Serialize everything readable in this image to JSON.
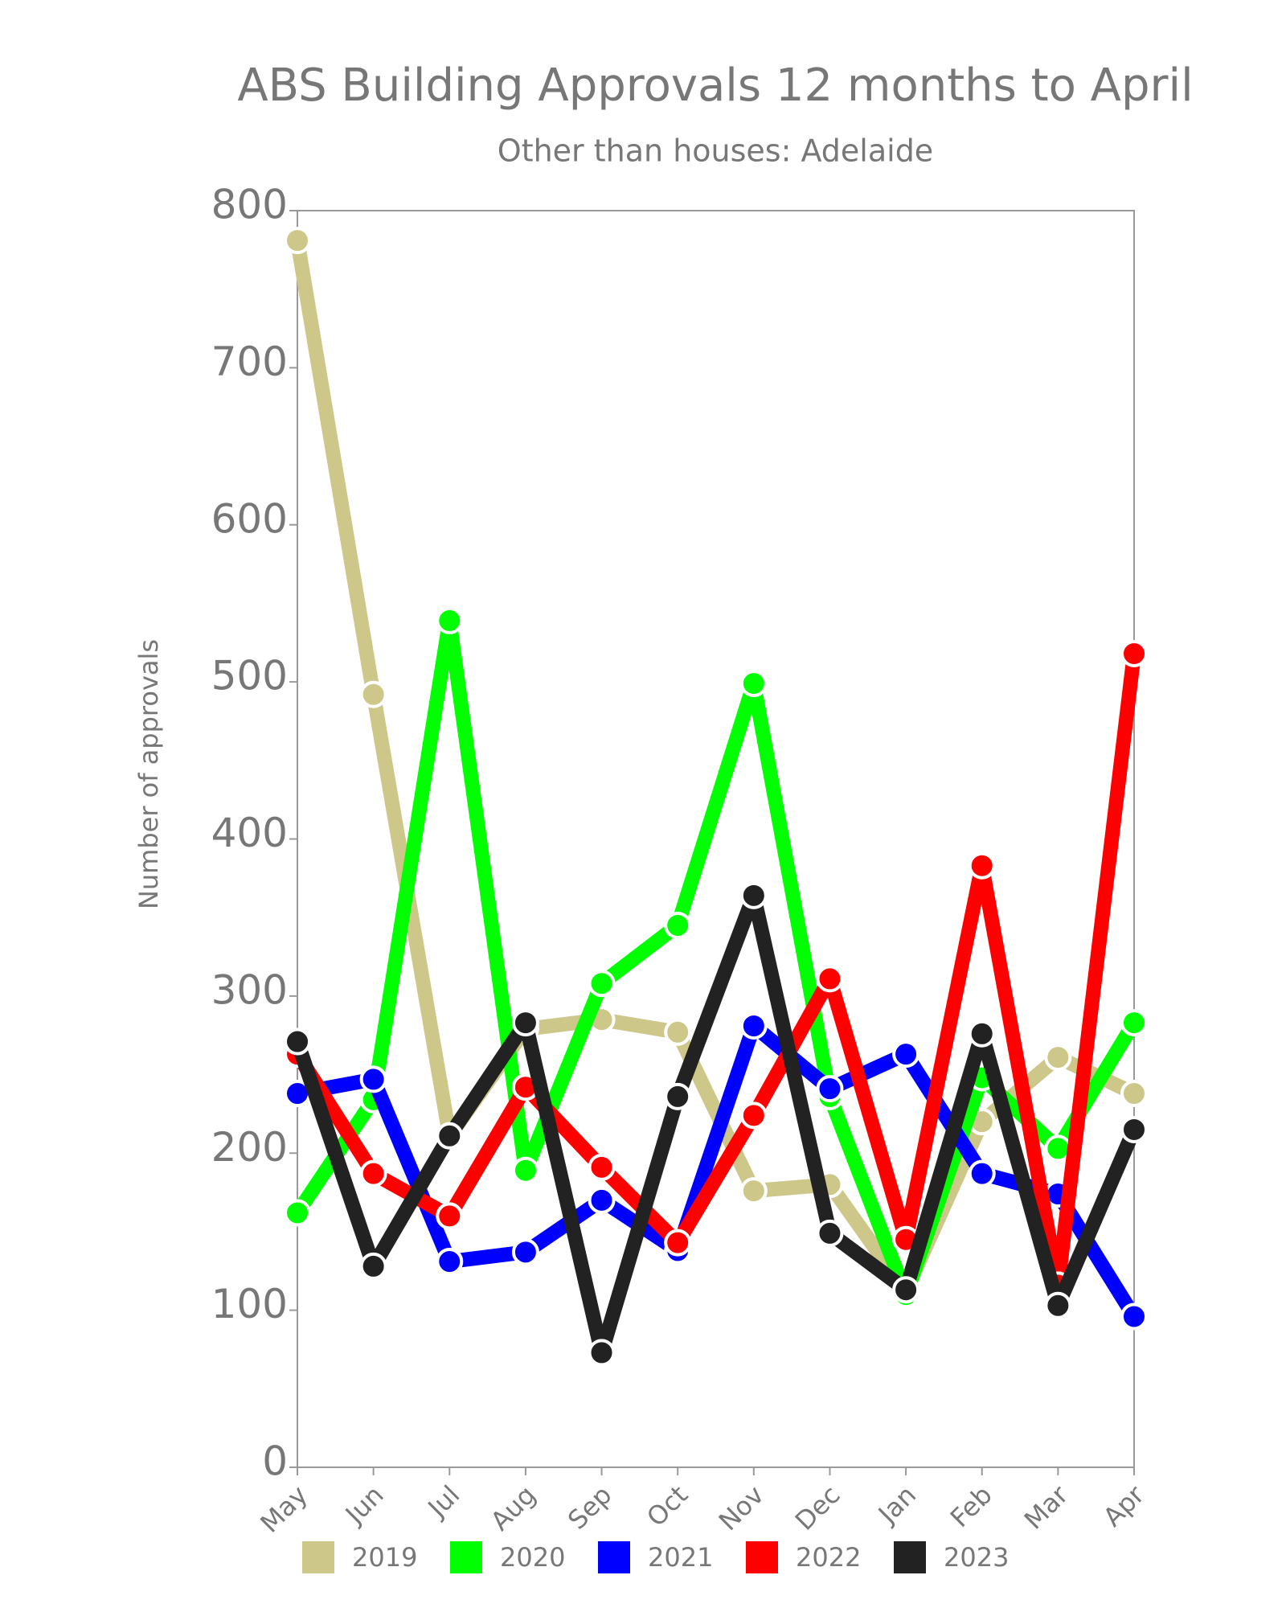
{
  "chart_data": {
    "type": "line",
    "title": "ABS Building Approvals 12 months to April",
    "subtitle": "Other than houses: Adelaide",
    "y_label": "Number of approvals",
    "categories": [
      "May",
      "Jun",
      "Jul",
      "Aug",
      "Sep",
      "Oct",
      "Nov",
      "Dec",
      "Jan",
      "Feb",
      "Mar",
      "Apr"
    ],
    "ylim": [
      0,
      800
    ],
    "yticks": [
      0,
      100,
      200,
      300,
      400,
      500,
      600,
      700,
      800
    ],
    "grid": false,
    "series": [
      {
        "name": "2019",
        "color": "#cdc88a",
        "values": [
          781,
          492,
          211,
          279,
          285,
          277,
          176,
          180,
          112,
          220,
          261,
          238
        ]
      },
      {
        "name": "2020",
        "color": "#00ff00",
        "values": [
          162,
          234,
          539,
          189,
          308,
          345,
          499,
          236,
          110,
          248,
          203,
          283
        ]
      },
      {
        "name": "2021",
        "color": "#0000ff",
        "values": [
          238,
          247,
          131,
          137,
          170,
          138,
          281,
          241,
          263,
          187,
          174,
          96
        ]
      },
      {
        "name": "2022",
        "color": "#ff0000",
        "values": [
          263,
          187,
          160,
          242,
          191,
          143,
          224,
          311,
          145,
          383,
          116,
          518
        ]
      },
      {
        "name": "2023",
        "color": "#222222",
        "values": [
          271,
          128,
          211,
          283,
          73,
          236,
          364,
          149,
          113,
          276,
          103,
          215
        ]
      }
    ]
  }
}
